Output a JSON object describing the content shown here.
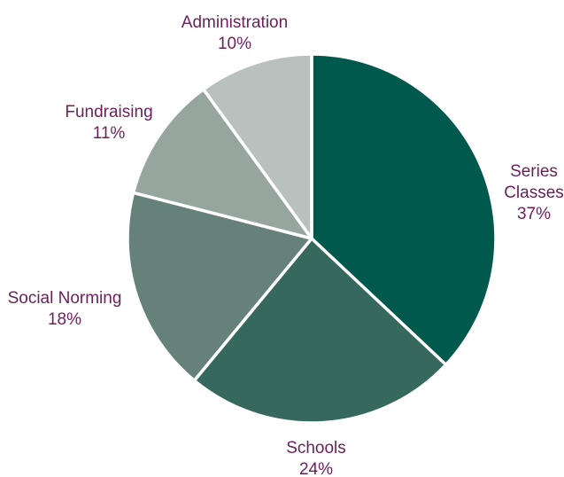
{
  "chart_data": {
    "type": "pie",
    "title": "",
    "start_angle_deg": 0,
    "direction": "clockwise",
    "label_color": "#6b1f5c",
    "slices": [
      {
        "label_lines": [
          "Series",
          "Classes"
        ],
        "percent_label": "37%",
        "value": 37,
        "color": "#00594c"
      },
      {
        "label_lines": [
          "Schools"
        ],
        "percent_label": "24%",
        "value": 24,
        "color": "#36685d"
      },
      {
        "label_lines": [
          "Social Norming"
        ],
        "percent_label": "18%",
        "value": 18,
        "color": "#668179"
      },
      {
        "label_lines": [
          "Fundraising"
        ],
        "percent_label": "11%",
        "value": 11,
        "color": "#97a59f"
      },
      {
        "label_lines": [
          "Administration"
        ],
        "percent_label": "10%",
        "value": 10,
        "color": "#b9c1be"
      }
    ]
  }
}
